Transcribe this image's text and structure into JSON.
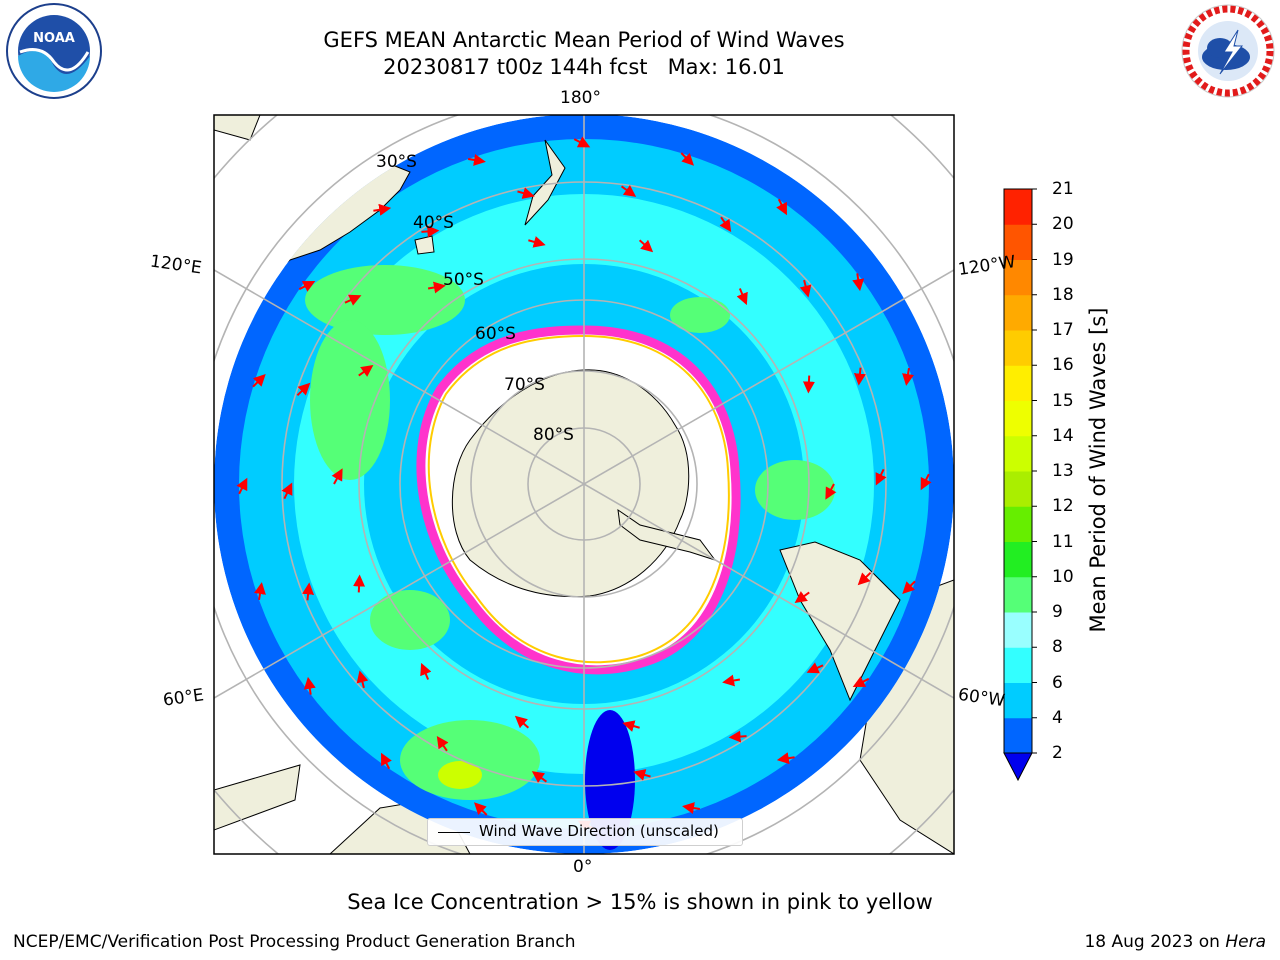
{
  "header": {
    "title": "GEFS MEAN Antarctic Mean Period of Wind Waves",
    "subtitle": "20230817 t00z 144h fcst   Max: 16.01"
  },
  "map": {
    "projection": "south-polar-stereographic",
    "meridian_labels": {
      "top": "180°",
      "bottom": "0°",
      "left_upper": "120°E",
      "left_lower": "60°E",
      "right_upper": "120°W",
      "right_lower": "60°W"
    },
    "latitude_labels": [
      "30°S",
      "40°S",
      "50°S",
      "60°S",
      "70°S",
      "80°S"
    ],
    "land_color": "#efefdc",
    "ice_color": "#ff33cc",
    "arrow_color": "#ff0000"
  },
  "legend": {
    "label": "Wind Wave Direction (unscaled)"
  },
  "colorbar": {
    "label": "Mean Period of Wind Waves [s]",
    "ticks": [
      "2",
      "4",
      "6",
      "8",
      "9",
      "10",
      "11",
      "12",
      "13",
      "14",
      "15",
      "16",
      "17",
      "18",
      "19",
      "20",
      "21"
    ],
    "colors": [
      "#0066ff",
      "#00ccff",
      "#33ffff",
      "#99ffff",
      "#55ff77",
      "#22ee22",
      "#66ee00",
      "#aaee00",
      "#ccff00",
      "#eeff00",
      "#ffee00",
      "#ffcc00",
      "#ffaa00",
      "#ff8800",
      "#ff5500",
      "#ff2200"
    ],
    "under_color": "#0000ee"
  },
  "note": "Sea Ice Concentration > 15% is shown in pink to yellow",
  "footer": {
    "left": "NCEP/EMC/Verification Post Processing Product Generation Branch",
    "date": "18 Aug 2023 on",
    "host": "Hera"
  },
  "logos": {
    "left": "NOAA",
    "right": "NATIONAL WEATHER SERVICE"
  }
}
